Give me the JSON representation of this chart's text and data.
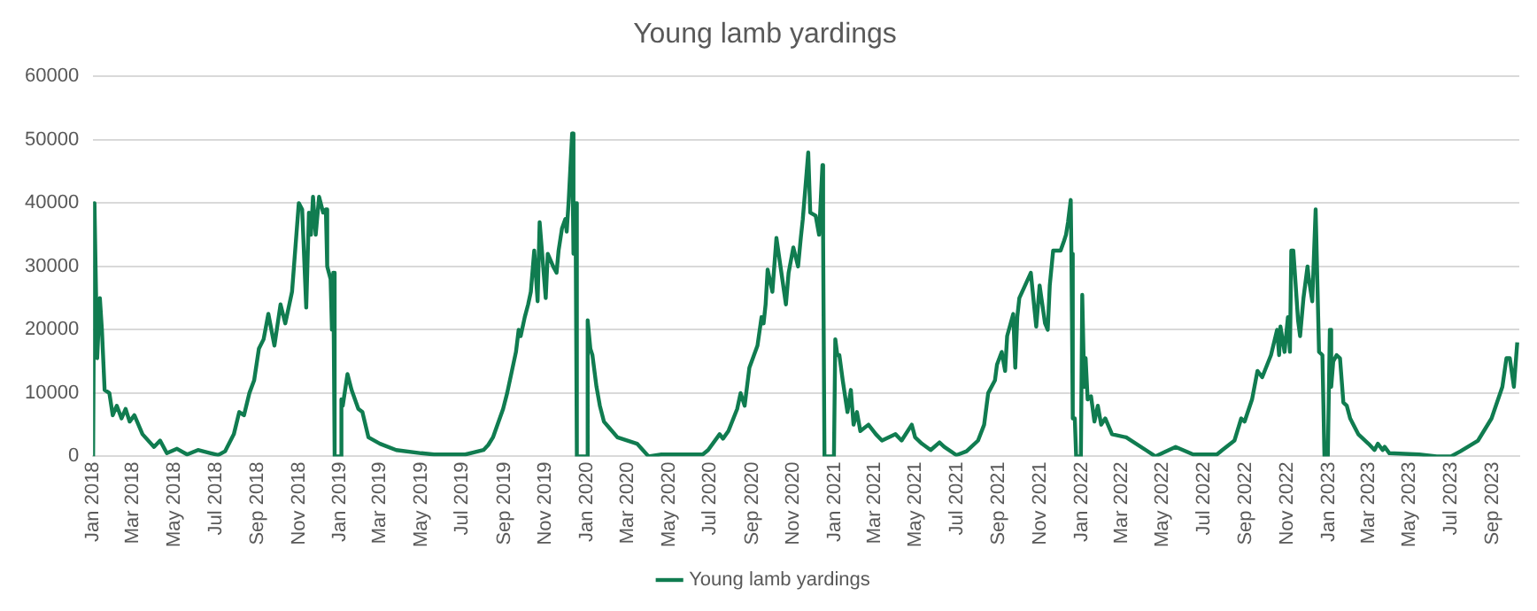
{
  "chart_data": {
    "type": "line",
    "title": "Young lamb yardings",
    "legend": "bottom",
    "grid": "y",
    "marker": "none",
    "line_style": "solid",
    "xlim": [
      "2018-01-01",
      "2023-10-10"
    ],
    "ylim": [
      0,
      60000
    ],
    "yticks": [
      0,
      10000,
      20000,
      30000,
      40000,
      50000,
      60000
    ],
    "xticks": [
      {
        "value": "2018-01",
        "label": "Jan 2018"
      },
      {
        "value": "2018-03",
        "label": "Mar 2018"
      },
      {
        "value": "2018-05",
        "label": "May 2018"
      },
      {
        "value": "2018-07",
        "label": "Jul 2018"
      },
      {
        "value": "2018-09",
        "label": "Sep 2018"
      },
      {
        "value": "2018-11",
        "label": "Nov 2018"
      },
      {
        "value": "2019-01",
        "label": "Jan 2019"
      },
      {
        "value": "2019-03",
        "label": "Mar 2019"
      },
      {
        "value": "2019-05",
        "label": "May 2019"
      },
      {
        "value": "2019-07",
        "label": "Jul 2019"
      },
      {
        "value": "2019-09",
        "label": "Sep 2019"
      },
      {
        "value": "2019-11",
        "label": "Nov 2019"
      },
      {
        "value": "2020-01",
        "label": "Jan 2020"
      },
      {
        "value": "2020-03",
        "label": "Mar 2020"
      },
      {
        "value": "2020-05",
        "label": "May 2020"
      },
      {
        "value": "2020-07",
        "label": "Jul 2020"
      },
      {
        "value": "2020-09",
        "label": "Sep 2020"
      },
      {
        "value": "2020-11",
        "label": "Nov 2020"
      },
      {
        "value": "2021-01",
        "label": "Jan 2021"
      },
      {
        "value": "2021-03",
        "label": "Mar 2021"
      },
      {
        "value": "2021-05",
        "label": "May 2021"
      },
      {
        "value": "2021-07",
        "label": "Jul 2021"
      },
      {
        "value": "2021-09",
        "label": "Sep 2021"
      },
      {
        "value": "2021-11",
        "label": "Nov 2021"
      },
      {
        "value": "2022-01",
        "label": "Jan 2022"
      },
      {
        "value": "2022-03",
        "label": "Mar 2022"
      },
      {
        "value": "2022-05",
        "label": "May 2022"
      },
      {
        "value": "2022-07",
        "label": "Jul 2022"
      },
      {
        "value": "2022-09",
        "label": "Sep 2022"
      },
      {
        "value": "2022-11",
        "label": "Nov 2022"
      },
      {
        "value": "2023-01",
        "label": "Jan 2023"
      },
      {
        "value": "2023-03",
        "label": "Mar 2023"
      },
      {
        "value": "2023-05",
        "label": "May 2023"
      },
      {
        "value": "2023-07",
        "label": "Jul 2023"
      },
      {
        "value": "2023-09",
        "label": "Sep 2023"
      }
    ],
    "series": [
      {
        "name": "Young lamb yardings",
        "color": "#107c50",
        "x": [
          "2018-01-01",
          "2018-01-03",
          "2018-01-07",
          "2018-01-11",
          "2018-01-14",
          "2018-01-18",
          "2018-01-25",
          "2018-01-30",
          "2018-02-05",
          "2018-02-12",
          "2018-02-18",
          "2018-02-24",
          "2018-03-03",
          "2018-03-15",
          "2018-04-01",
          "2018-04-10",
          "2018-04-20",
          "2018-05-05",
          "2018-05-20",
          "2018-06-05",
          "2018-06-20",
          "2018-07-05",
          "2018-07-15",
          "2018-07-28",
          "2018-08-05",
          "2018-08-12",
          "2018-08-20",
          "2018-08-27",
          "2018-09-03",
          "2018-09-10",
          "2018-09-17",
          "2018-09-26",
          "2018-10-05",
          "2018-10-12",
          "2018-10-22",
          "2018-11-01",
          "2018-11-06",
          "2018-11-12",
          "2018-11-16",
          "2018-11-19",
          "2018-11-22",
          "2018-11-26",
          "2018-12-01",
          "2018-12-07",
          "2018-12-11",
          "2018-12-13",
          "2018-12-18",
          "2018-12-20",
          "2018-12-22",
          "2018-12-24",
          "2019-01-01",
          "2019-01-03",
          "2019-01-05",
          "2019-01-12",
          "2019-01-18",
          "2019-01-28",
          "2019-02-03",
          "2019-02-12",
          "2019-03-01",
          "2019-03-25",
          "2019-05-01",
          "2019-05-20",
          "2019-07-05",
          "2019-08-01",
          "2019-08-08",
          "2019-08-15",
          "2019-08-30",
          "2019-09-05",
          "2019-09-12",
          "2019-09-18",
          "2019-09-22",
          "2019-09-25",
          "2019-10-01",
          "2019-10-06",
          "2019-10-10",
          "2019-10-15",
          "2019-10-20",
          "2019-10-23",
          "2019-11-01",
          "2019-11-04",
          "2019-11-12",
          "2019-11-17",
          "2019-11-20",
          "2019-11-25",
          "2019-11-30",
          "2019-12-02",
          "2019-12-05",
          "2019-12-10",
          "2019-12-12",
          "2019-12-15",
          "2019-12-17",
          "2019-12-31",
          "2020-01-02",
          "2020-01-06",
          "2020-01-09",
          "2020-01-15",
          "2020-01-20",
          "2020-01-26",
          "2020-02-03",
          "2020-02-15",
          "2020-03-15",
          "2020-04-01",
          "2020-04-20",
          "2020-06-20",
          "2020-06-28",
          "2020-07-15",
          "2020-07-20",
          "2020-07-28",
          "2020-08-10",
          "2020-08-15",
          "2020-08-21",
          "2020-08-28",
          "2020-09-09",
          "2020-09-15",
          "2020-09-18",
          "2020-09-21",
          "2020-09-24",
          "2020-10-01",
          "2020-10-07",
          "2020-10-13",
          "2020-10-21",
          "2020-10-25",
          "2020-11-01",
          "2020-11-08",
          "2020-11-12",
          "2020-11-15",
          "2020-11-20",
          "2020-11-23",
          "2020-11-26",
          "2020-12-04",
          "2020-12-09",
          "2020-12-14",
          "2020-12-15",
          "2020-12-17",
          "2020-12-31",
          "2021-01-02",
          "2021-01-05",
          "2021-01-08",
          "2021-01-13",
          "2021-01-20",
          "2021-01-25",
          "2021-01-29",
          "2021-02-03",
          "2021-02-08",
          "2021-02-20",
          "2021-03-03",
          "2021-03-12",
          "2021-04-01",
          "2021-04-10",
          "2021-04-25",
          "2021-04-30",
          "2021-05-10",
          "2021-05-23",
          "2021-06-05",
          "2021-06-12",
          "2021-06-30",
          "2021-07-15",
          "2021-08-01",
          "2021-08-10",
          "2021-08-16",
          "2021-08-26",
          "2021-08-29",
          "2021-09-05",
          "2021-09-10",
          "2021-09-13",
          "2021-09-22",
          "2021-09-25",
          "2021-09-28",
          "2021-10-01",
          "2021-10-18",
          "2021-10-26",
          "2021-10-31",
          "2021-11-08",
          "2021-11-12",
          "2021-11-15",
          "2021-11-20",
          "2021-12-01",
          "2021-12-06",
          "2021-12-09",
          "2021-12-12",
          "2021-12-16",
          "2021-12-17",
          "2021-12-19",
          "2021-12-22",
          "2021-12-24",
          "2021-12-31",
          "2022-01-02",
          "2022-01-05",
          "2022-01-07",
          "2022-01-10",
          "2022-01-15",
          "2022-01-20",
          "2022-01-25",
          "2022-01-30",
          "2022-02-05",
          "2022-02-15",
          "2022-03-08",
          "2022-04-06",
          "2022-04-20",
          "2022-05-20",
          "2022-06-15",
          "2022-07-20",
          "2022-07-28",
          "2022-08-15",
          "2022-08-25",
          "2022-08-30",
          "2022-09-10",
          "2022-09-18",
          "2022-09-25",
          "2022-10-08",
          "2022-10-17",
          "2022-10-20",
          "2022-10-22",
          "2022-10-28",
          "2022-11-02",
          "2022-11-05",
          "2022-11-07",
          "2022-11-10",
          "2022-11-17",
          "2022-11-20",
          "2022-11-25",
          "2022-12-01",
          "2022-12-03",
          "2022-12-08",
          "2022-12-13",
          "2022-12-18",
          "2022-12-23",
          "2022-12-26",
          "2022-12-31",
          "2023-01-03",
          "2023-01-05",
          "2023-01-08",
          "2023-01-13",
          "2023-01-18",
          "2023-01-23",
          "2023-01-28",
          "2023-02-02",
          "2023-02-14",
          "2023-03-01",
          "2023-03-10",
          "2023-03-15",
          "2023-03-22",
          "2023-03-25",
          "2023-04-01",
          "2023-05-15",
          "2023-06-10",
          "2023-07-01",
          "2023-07-15",
          "2023-08-10",
          "2023-08-30",
          "2023-09-15",
          "2023-09-21",
          "2023-09-26",
          "2023-10-02",
          "2023-10-07"
        ],
        "values": [
          0,
          40000,
          15500,
          25000,
          20000,
          10500,
          10000,
          6500,
          8000,
          6000,
          7500,
          5500,
          6500,
          3500,
          1500,
          2500,
          500,
          1200,
          300,
          1000,
          600,
          200,
          800,
          3500,
          7000,
          6500,
          10000,
          12000,
          17000,
          18500,
          22500,
          17500,
          24000,
          21000,
          26000,
          40000,
          39000,
          23500,
          38500,
          35000,
          41000,
          35000,
          41000,
          38500,
          39000,
          30000,
          28000,
          20000,
          29000,
          0,
          0,
          9000,
          8000,
          13000,
          10500,
          7500,
          7000,
          3000,
          2000,
          1000,
          500,
          300,
          300,
          1000,
          1800,
          3000,
          7500,
          10000,
          13500,
          16500,
          20000,
          19000,
          22000,
          24000,
          26000,
          32500,
          24500,
          37000,
          25000,
          32000,
          30000,
          29000,
          32500,
          36000,
          37500,
          35500,
          40500,
          51000,
          32000,
          40000,
          0,
          0,
          21500,
          17000,
          16000,
          11000,
          8000,
          5500,
          4500,
          3000,
          2000,
          0,
          300,
          300,
          1000,
          3500,
          2800,
          4000,
          7500,
          10000,
          8000,
          14000,
          17500,
          22000,
          21000,
          24000,
          29500,
          26000,
          34500,
          30000,
          24000,
          29000,
          33000,
          30000,
          34500,
          37500,
          44000,
          48000,
          38500,
          38000,
          35000,
          46000,
          34500,
          0,
          0,
          18500,
          16000,
          16000,
          12000,
          7000,
          10500,
          5000,
          7000,
          4000,
          5000,
          3500,
          2500,
          3500,
          2500,
          5000,
          3000,
          2000,
          1000,
          2200,
          1500,
          200,
          800,
          2500,
          5000,
          10000,
          12000,
          14500,
          16500,
          13500,
          19000,
          22500,
          14000,
          22000,
          25000,
          29000,
          20500,
          27000,
          21000,
          20000,
          27000,
          32500,
          32500,
          34000,
          35000,
          37000,
          40500,
          32000,
          6000,
          6000,
          0,
          0,
          25500,
          11000,
          15500,
          9000,
          9500,
          5500,
          8000,
          5000,
          6000,
          3500,
          3000,
          1000,
          0,
          1500,
          300,
          300,
          1000,
          2500,
          6000,
          5500,
          9000,
          13500,
          12500,
          16000,
          20000,
          16000,
          20500,
          16500,
          22000,
          16500,
          32500,
          32500,
          21500,
          19000,
          25000,
          30000,
          28000,
          24500,
          39000,
          16500,
          16000,
          0,
          0,
          20000,
          11000,
          15000,
          16000,
          15500,
          8500,
          8000,
          6000,
          3500,
          2000,
          1000,
          2000,
          1000,
          1500,
          500,
          300,
          0,
          0,
          800,
          2500,
          6000,
          11000,
          15500,
          15500,
          11000,
          18000
        ]
      }
    ]
  }
}
